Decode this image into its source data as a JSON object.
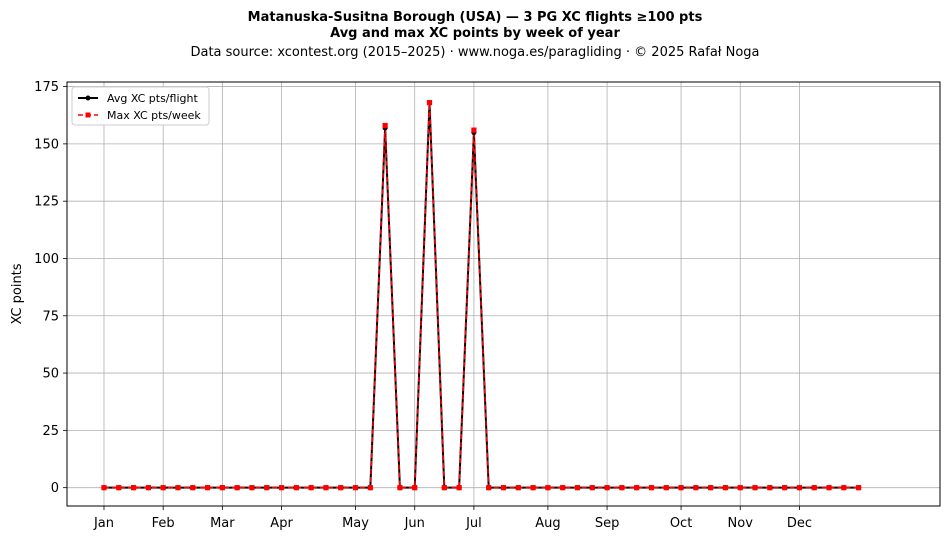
{
  "chart_data": {
    "type": "line",
    "title_line1": "Matanuska-Susitna Borough (USA)  —  3 PG XC flights ≥100 pts",
    "title_line2": "Avg and max XC points by week of year",
    "subtitle": "Data source: xcontest.org (2015–2025)  ·  www.noga.es/paragliding  ·  © 2025 Rafał Noga",
    "xlabel": "",
    "ylabel": "XC points",
    "ylim": [
      -8,
      177
    ],
    "xlim": [
      -2.5,
      56.5
    ],
    "yticks": [
      0,
      25,
      50,
      75,
      100,
      125,
      150,
      175
    ],
    "xtick_positions": [
      0,
      4,
      8,
      12,
      17,
      21,
      25,
      30,
      34,
      39,
      43,
      47
    ],
    "xtick_labels": [
      "Jan",
      "Feb",
      "Mar",
      "Apr",
      "May",
      "Jun",
      "Jul",
      "Aug",
      "Sep",
      "Oct",
      "Nov",
      "Dec"
    ],
    "grid": true,
    "legend_position": "top-left",
    "x": [
      0,
      1,
      2,
      3,
      4,
      5,
      6,
      7,
      8,
      9,
      10,
      11,
      12,
      13,
      14,
      15,
      16,
      17,
      18,
      19,
      20,
      21,
      22,
      23,
      24,
      25,
      26,
      27,
      28,
      29,
      30,
      31,
      32,
      33,
      34,
      35,
      36,
      37,
      38,
      39,
      40,
      41,
      42,
      43,
      44,
      45,
      46,
      47,
      48,
      49,
      50,
      51
    ],
    "series": [
      {
        "name": "Avg XC pts/flight",
        "color": "#000000",
        "marker": "circle",
        "linestyle": "solid",
        "values": [
          0,
          0,
          0,
          0,
          0,
          0,
          0,
          0,
          0,
          0,
          0,
          0,
          0,
          0,
          0,
          0,
          0,
          0,
          0,
          157,
          0,
          0,
          168,
          0,
          0,
          155,
          0,
          0,
          0,
          0,
          0,
          0,
          0,
          0,
          0,
          0,
          0,
          0,
          0,
          0,
          0,
          0,
          0,
          0,
          0,
          0,
          0,
          0,
          0,
          0,
          0,
          0
        ]
      },
      {
        "name": "Max XC pts/week",
        "color": "#ff0000",
        "marker": "square",
        "linestyle": "dashed",
        "values": [
          0,
          0,
          0,
          0,
          0,
          0,
          0,
          0,
          0,
          0,
          0,
          0,
          0,
          0,
          0,
          0,
          0,
          0,
          0,
          158,
          0,
          0,
          168,
          0,
          0,
          156,
          0,
          0,
          0,
          0,
          0,
          0,
          0,
          0,
          0,
          0,
          0,
          0,
          0,
          0,
          0,
          0,
          0,
          0,
          0,
          0,
          0,
          0,
          0,
          0,
          0,
          0
        ]
      }
    ]
  }
}
